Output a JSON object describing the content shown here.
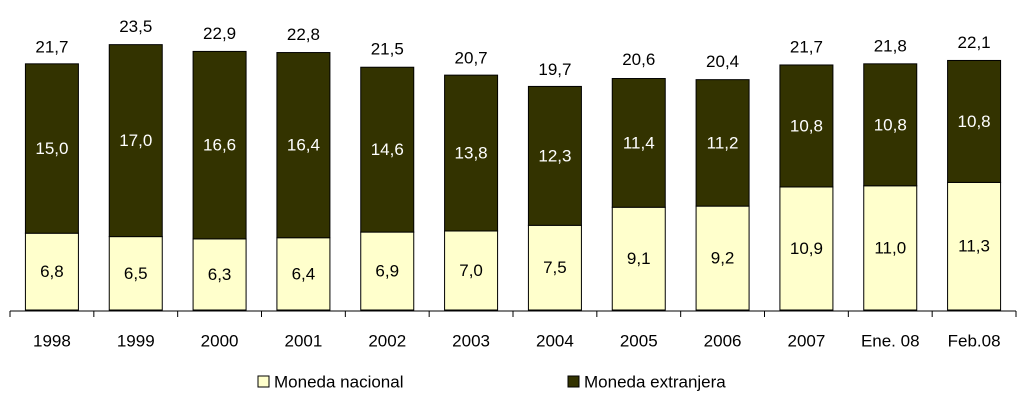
{
  "chart_data": {
    "type": "stacked_bar",
    "categories": [
      "1998",
      "1999",
      "2000",
      "2001",
      "2002",
      "2003",
      "2004",
      "2005",
      "2006",
      "2007",
      "Ene. 08",
      "Feb.08"
    ],
    "series": [
      {
        "name": "Moneda nacional",
        "color": "#ffffcc",
        "values": [
          6.8,
          6.5,
          6.3,
          6.4,
          6.9,
          7.0,
          7.5,
          9.1,
          9.2,
          10.9,
          11.0,
          11.3
        ],
        "value_labels": [
          "6,8",
          "6,5",
          "6,3",
          "6,4",
          "6,9",
          "7,0",
          "7,5",
          "9,1",
          "9,2",
          "10,9",
          "11,0",
          "11,3"
        ]
      },
      {
        "name": "Moneda extranjera",
        "color": "#333300",
        "values": [
          15.0,
          17.0,
          16.6,
          16.4,
          14.6,
          13.8,
          12.3,
          11.4,
          11.2,
          10.8,
          10.8,
          10.8
        ],
        "value_labels": [
          "15,0",
          "17,0",
          "16,6",
          "16,4",
          "14,6",
          "13,8",
          "12,3",
          "11,4",
          "11,2",
          "10,8",
          "10,8",
          "10,8"
        ]
      }
    ],
    "totals": [
      21.7,
      23.5,
      22.9,
      22.8,
      21.5,
      20.7,
      19.7,
      20.6,
      20.4,
      21.7,
      21.8,
      22.1
    ],
    "total_labels": [
      "21,7",
      "23,5",
      "22,9",
      "22,8",
      "21,5",
      "20,7",
      "19,7",
      "20,6",
      "20,4",
      "21,7",
      "21,8",
      "22,1"
    ],
    "ylim": [
      0,
      24
    ],
    "legend": "bottom"
  }
}
